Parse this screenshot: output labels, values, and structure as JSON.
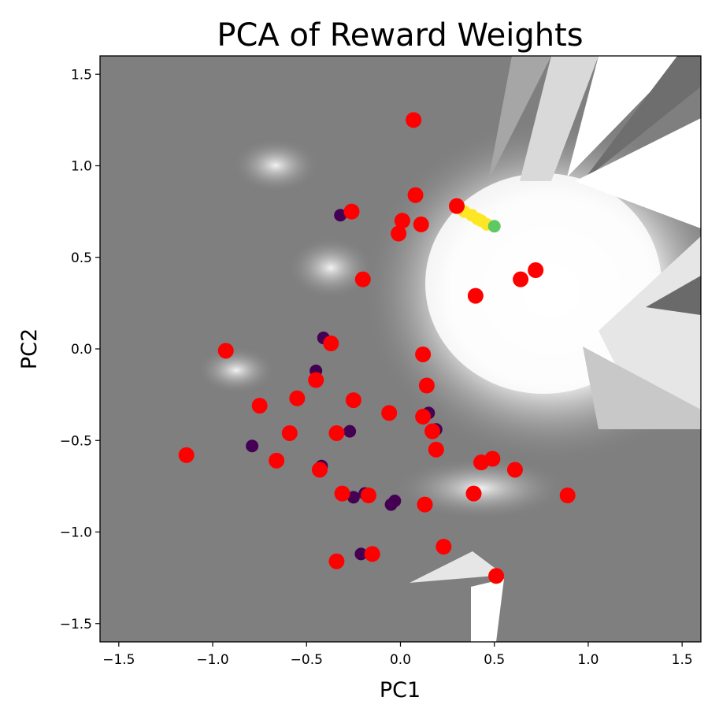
{
  "chart_data": {
    "type": "scatter",
    "title": "PCA of Reward Weights",
    "xlabel": "PC1",
    "ylabel": "PC2",
    "xlim": [
      -1.6,
      1.6
    ],
    "ylim": [
      -1.6,
      1.6
    ],
    "xticks": [
      -1.5,
      -1.0,
      -0.5,
      0.0,
      0.5,
      1.0,
      1.5
    ],
    "yticks": [
      -1.5,
      -1.0,
      -0.5,
      0.0,
      0.5,
      1.0,
      1.5
    ],
    "xtick_labels": [
      "−1.5",
      "−1.0",
      "−0.5",
      "0.0",
      "0.5",
      "1.0",
      "1.5"
    ],
    "ytick_labels": [
      "−1.5",
      "−1.0",
      "−0.5",
      "0.0",
      "0.5",
      "1.0",
      "1.5"
    ],
    "grid": false,
    "background": "grayscale decision-surface map (mid gray, lighter regions toward the upper right)",
    "colors": {
      "red": "#ff0000",
      "dark_purple": "#440154",
      "yellow": "#fde725",
      "green": "#5ec962",
      "map_gray": "#7f7f7f",
      "map_light": "#f2f2f2"
    },
    "series": [
      {
        "color": "#ff0000",
        "points": [
          [
            0.07,
            1.25
          ],
          [
            0.08,
            0.84
          ],
          [
            -0.26,
            0.75
          ],
          [
            0.3,
            0.78
          ],
          [
            0.01,
            0.7
          ],
          [
            0.11,
            0.68
          ],
          [
            -0.01,
            0.63
          ],
          [
            -0.2,
            0.38
          ],
          [
            0.64,
            0.38
          ],
          [
            0.72,
            0.43
          ],
          [
            0.4,
            0.29
          ],
          [
            -0.93,
            -0.01
          ],
          [
            -0.37,
            0.03
          ],
          [
            0.12,
            -0.03
          ],
          [
            -0.45,
            -0.17
          ],
          [
            0.14,
            -0.2
          ],
          [
            -0.55,
            -0.27
          ],
          [
            -0.25,
            -0.28
          ],
          [
            -0.75,
            -0.31
          ],
          [
            -0.06,
            -0.35
          ],
          [
            0.12,
            -0.37
          ],
          [
            -0.59,
            -0.46
          ],
          [
            -0.34,
            -0.46
          ],
          [
            0.17,
            -0.45
          ],
          [
            0.19,
            -0.55
          ],
          [
            0.49,
            -0.6
          ],
          [
            0.43,
            -0.62
          ],
          [
            -0.66,
            -0.61
          ],
          [
            -0.43,
            -0.66
          ],
          [
            0.61,
            -0.66
          ],
          [
            -0.31,
            -0.79
          ],
          [
            -0.17,
            -0.8
          ],
          [
            0.39,
            -0.79
          ],
          [
            0.89,
            -0.8
          ],
          [
            0.13,
            -0.85
          ],
          [
            0.23,
            -1.08
          ],
          [
            -0.15,
            -1.12
          ],
          [
            -0.34,
            -1.16
          ],
          [
            0.51,
            -1.24
          ],
          [
            -1.14,
            -0.58
          ]
        ]
      },
      {
        "color": "#440154",
        "points": [
          [
            -0.32,
            0.73
          ],
          [
            -0.41,
            0.06
          ],
          [
            -0.45,
            -0.12
          ],
          [
            0.15,
            -0.35
          ],
          [
            -0.27,
            -0.45
          ],
          [
            0.19,
            -0.44
          ],
          [
            -0.79,
            -0.53
          ],
          [
            -0.42,
            -0.64
          ],
          [
            -0.25,
            -0.81
          ],
          [
            -0.19,
            -0.79
          ],
          [
            -0.05,
            -0.85
          ],
          [
            -0.03,
            -0.83
          ],
          [
            -0.21,
            -1.12
          ]
        ]
      },
      {
        "color": "#fde725",
        "points": [
          [
            0.34,
            0.75
          ],
          [
            0.38,
            0.73
          ],
          [
            0.41,
            0.71
          ],
          [
            0.43,
            0.7
          ],
          [
            0.46,
            0.68
          ]
        ]
      },
      {
        "color": "#5ec962",
        "points": [
          [
            0.5,
            0.67
          ]
        ]
      }
    ]
  }
}
